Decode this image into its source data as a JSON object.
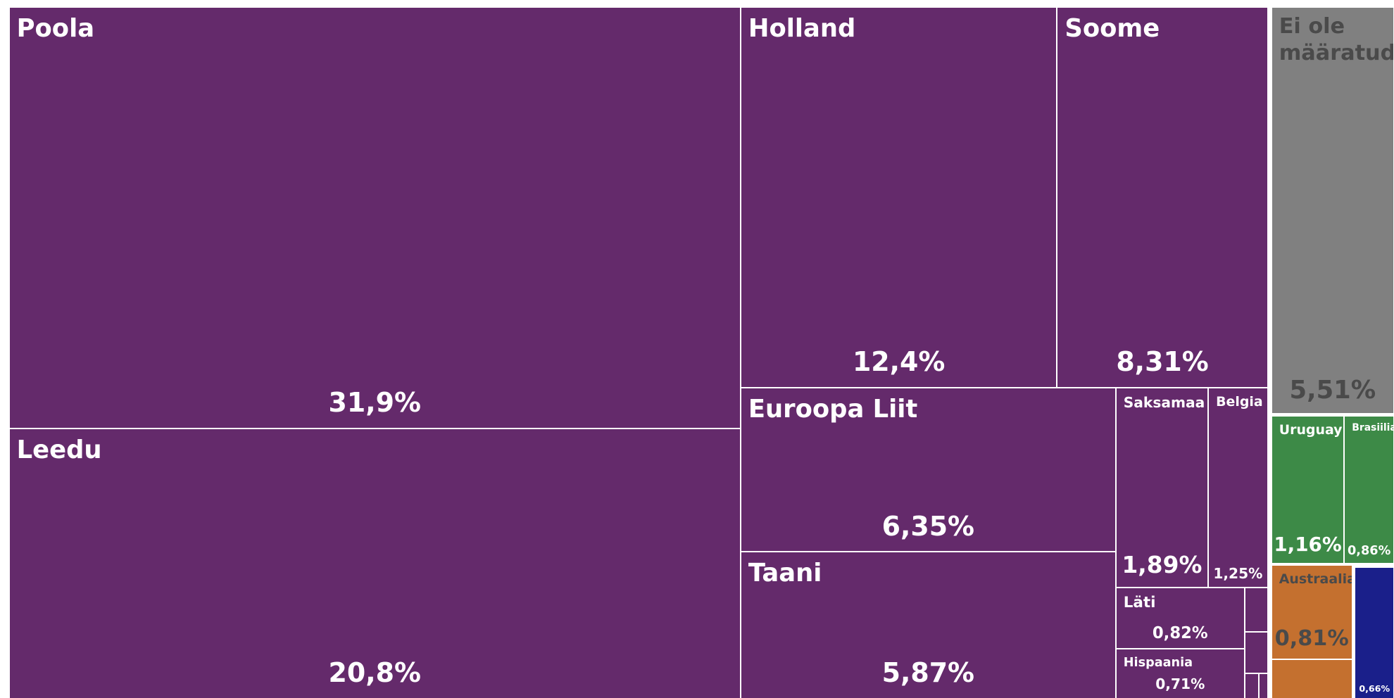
{
  "chart_data": {
    "type": "treemap",
    "items": [
      {
        "name": "Poola",
        "value": 31.9,
        "value_label": "31,9%",
        "color": "#642a6b"
      },
      {
        "name": "Leedu",
        "value": 20.8,
        "value_label": "20,8%",
        "color": "#642a6b"
      },
      {
        "name": "Holland",
        "value": 12.4,
        "value_label": "12,4%",
        "color": "#642a6b"
      },
      {
        "name": "Soome",
        "value": 8.31,
        "value_label": "8,31%",
        "color": "#642a6b"
      },
      {
        "name": "Euroopa Liit",
        "value": 6.35,
        "value_label": "6,35%",
        "color": "#642a6b"
      },
      {
        "name": "Taani",
        "value": 5.87,
        "value_label": "5,87%",
        "color": "#642a6b"
      },
      {
        "name": "Saksamaa",
        "value": 1.89,
        "value_label": "1,89%",
        "color": "#642a6b"
      },
      {
        "name": "Belgia",
        "value": 1.25,
        "value_label": "1,25%",
        "color": "#642a6b"
      },
      {
        "name": "Läti",
        "value": 0.82,
        "value_label": "0,82%",
        "color": "#642a6b"
      },
      {
        "name": "Hispaania",
        "value": 0.71,
        "value_label": "0,71%",
        "color": "#642a6b"
      },
      {
        "name": null,
        "value": 0.11,
        "value_label": null,
        "color": "#642a6b"
      },
      {
        "name": null,
        "value": 0.1,
        "value_label": null,
        "color": "#642a6b"
      },
      {
        "name": null,
        "value": 0.04,
        "value_label": null,
        "color": "#642a6b"
      },
      {
        "name": null,
        "value": 0.02,
        "value_label": null,
        "color": "#642a6b"
      },
      {
        "name": "Ei ole määratud",
        "value": 5.51,
        "value_label": "5,51%",
        "color": "#808080"
      },
      {
        "name": "Uruguay",
        "value": 1.16,
        "value_label": "1,16%",
        "color": "#3d8a47"
      },
      {
        "name": "Brasiilia",
        "value": 0.86,
        "value_label": "0,86%",
        "color": "#3d8a47"
      },
      {
        "name": "Austraalia",
        "value": 0.81,
        "value_label": "0,81%",
        "color": "#c4702f"
      },
      {
        "name": null,
        "value": 0.33,
        "value_label": null,
        "color": "#c4702f"
      },
      {
        "name": null,
        "value": 0.66,
        "value_label": "0,66%",
        "color": "#1a1f8a"
      }
    ]
  }
}
